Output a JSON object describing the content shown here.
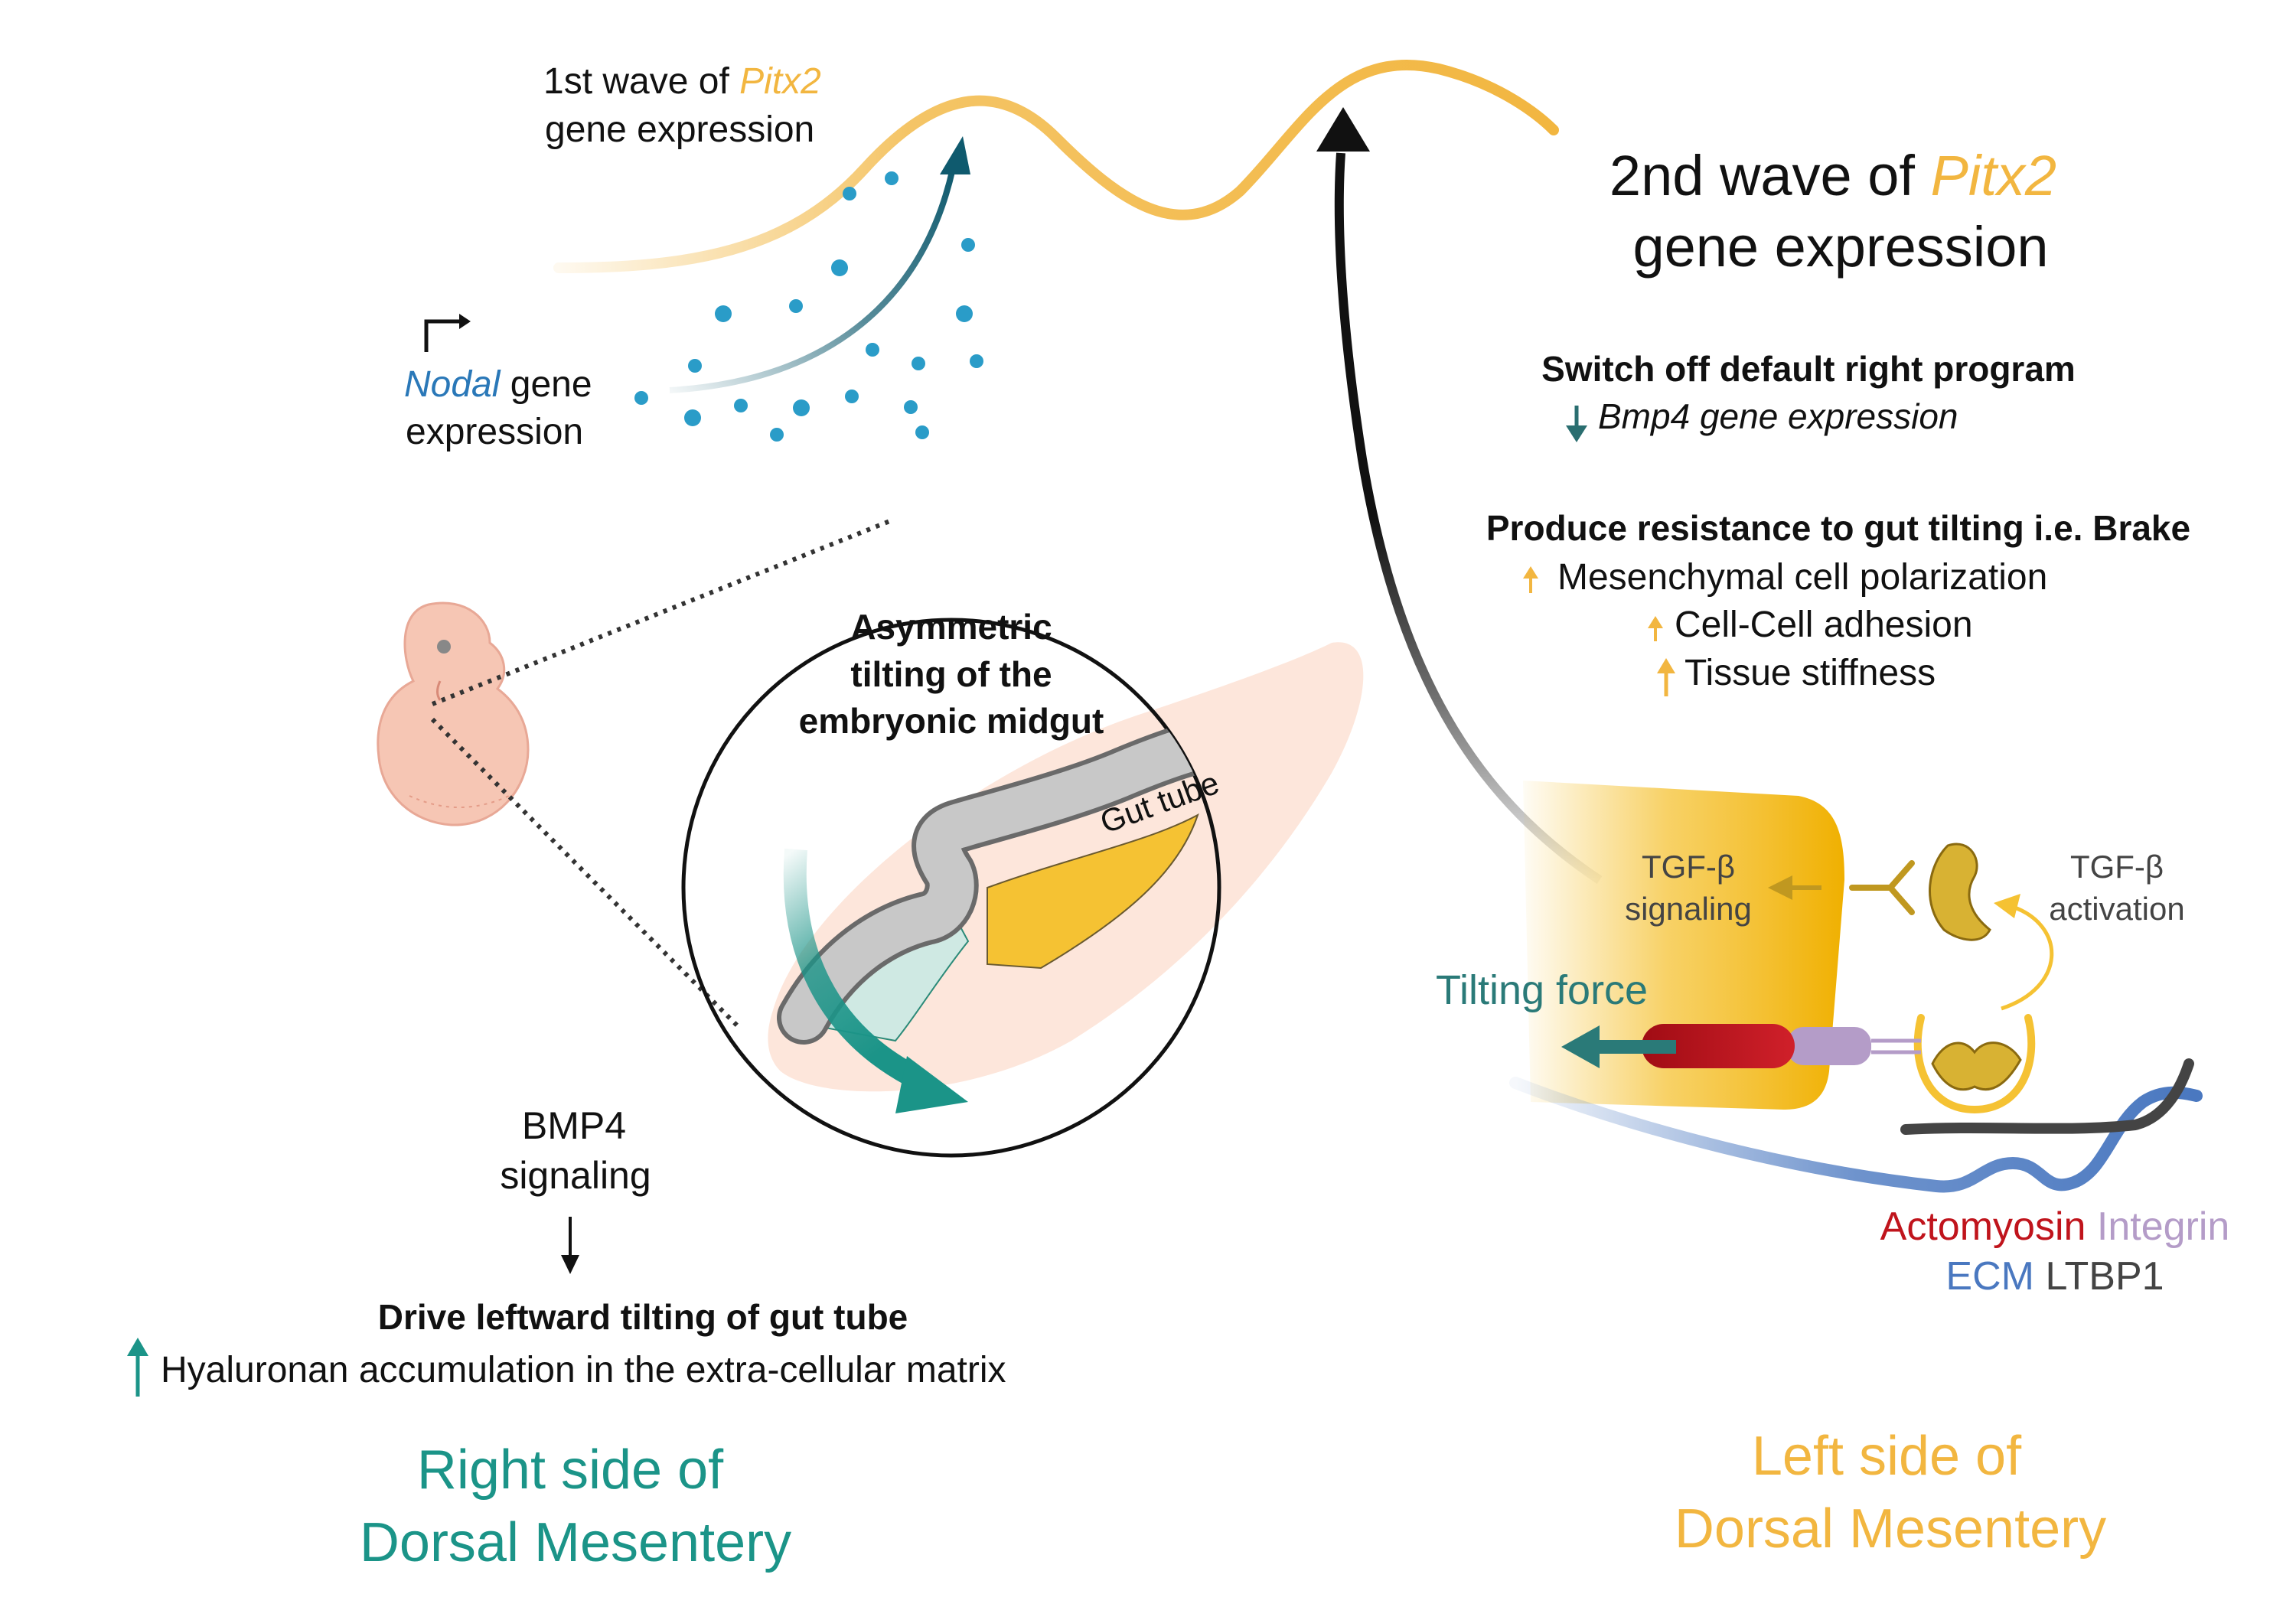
{
  "colors": {
    "pitx2": "#f2b640",
    "nodal": "#2a78b8",
    "teal": "#1b9488",
    "dark_teal": "#0f5a6e",
    "orange": "#f5c233",
    "orange_dark": "#e8a800",
    "actomyosin": "#c0141c",
    "integrin": "#b49cc8",
    "ecm": "#4a78c0",
    "ltbp1": "#444444",
    "pink": "#fde6db",
    "gray_tube": "#c8c8c8",
    "mint": "#cfe9e3"
  },
  "icons": {
    "embryo": "embryo-icon",
    "promoter": "promoter-arrow-icon",
    "down_arrow": "down-arrow-icon",
    "up_arrow": "up-arrow-icon",
    "receptor": "tgf-beta-receptor-icon",
    "ligand": "tgf-beta-ligand-icon"
  },
  "top_left": {
    "first_wave_prefix": "1st wave of ",
    "first_wave_gene": "Pitx2",
    "first_wave_suffix": "gene expression",
    "nodal_gene": "Nodal",
    "nodal_suffix": " gene",
    "nodal_line2": "expression"
  },
  "top_right": {
    "second_wave_prefix": "2nd wave of ",
    "second_wave_gene": "Pitx2",
    "second_wave_suffix": "gene expression",
    "switch_off_title": "Switch off default right program",
    "bmp4_down": "Bmp4 gene expression",
    "resistance_title": "Produce resistance to gut tilting i.e. Brake",
    "resistance_items": [
      "Mesenchymal cell polarization",
      "Cell-Cell adhesion",
      "Tissue stiffness"
    ]
  },
  "center": {
    "circle_title_lines": [
      "Asymmetric",
      "tilting of the",
      "embryonic midgut"
    ],
    "gut_tube_label": "Gut tube"
  },
  "bottom_left": {
    "bmp4_lines": [
      "BMP4",
      "signaling"
    ],
    "drive_title": "Drive leftward tilting of gut tube",
    "hyaluronan": "Hyaluronan accumulation in the extra-cellular matrix",
    "side_lines": [
      "Right side of",
      "Dorsal Mesentery"
    ]
  },
  "bottom_right": {
    "tgf_signaling_lines": [
      "TGF-β",
      "signaling"
    ],
    "tgf_activation_lines": [
      "TGF-β",
      "activation"
    ],
    "tilting_force": "Tilting force",
    "legend_actomyosin": "Actomyosin",
    "legend_integrin": "Integrin",
    "legend_ecm": "ECM",
    "legend_ltbp1": "LTBP1",
    "side_lines": [
      "Left side of",
      "Dorsal Mesentery"
    ]
  }
}
